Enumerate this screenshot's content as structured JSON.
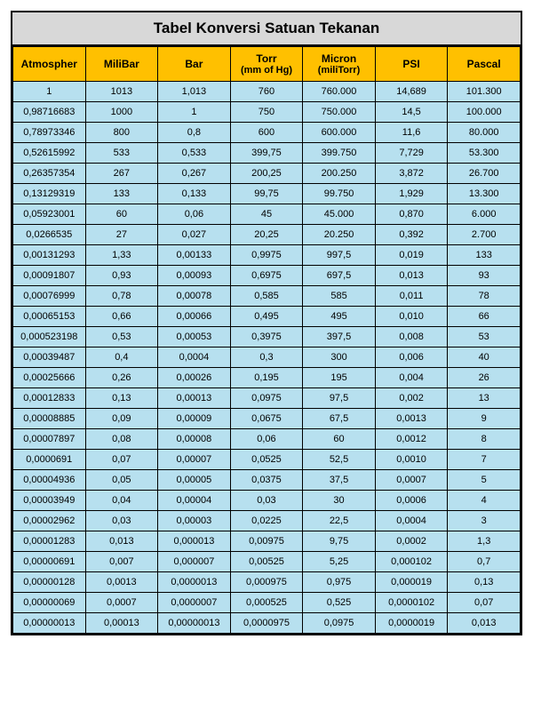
{
  "title": "Tabel Konversi Satuan Tekanan",
  "table": {
    "columns": [
      {
        "label": "Atmospher",
        "sub": ""
      },
      {
        "label": "MiliBar",
        "sub": ""
      },
      {
        "label": "Bar",
        "sub": ""
      },
      {
        "label": "Torr",
        "sub": "(mm of Hg)"
      },
      {
        "label": "Micron",
        "sub": "(miliTorr)"
      },
      {
        "label": "PSI",
        "sub": ""
      },
      {
        "label": "Pascal",
        "sub": ""
      }
    ],
    "colors": {
      "title_bg": "#d8d8d8",
      "header_bg": "#ffc000",
      "cell_bg": "#b7e0ef",
      "border": "#000000",
      "text": "#000000"
    },
    "title_fontsize": 17,
    "header_fontsize": 12,
    "cell_fontsize": 11,
    "rows": [
      [
        "1",
        "1013",
        "1,013",
        "760",
        "760.000",
        "14,689",
        "101.300"
      ],
      [
        "0,98716683",
        "1000",
        "1",
        "750",
        "750.000",
        "14,5",
        "100.000"
      ],
      [
        "0,78973346",
        "800",
        "0,8",
        "600",
        "600.000",
        "11,6",
        "80.000"
      ],
      [
        "0,52615992",
        "533",
        "0,533",
        "399,75",
        "399.750",
        "7,729",
        "53.300"
      ],
      [
        "0,26357354",
        "267",
        "0,267",
        "200,25",
        "200.250",
        "3,872",
        "26.700"
      ],
      [
        "0,13129319",
        "133",
        "0,133",
        "99,75",
        "99.750",
        "1,929",
        "13.300"
      ],
      [
        "0,05923001",
        "60",
        "0,06",
        "45",
        "45.000",
        "0,870",
        "6.000"
      ],
      [
        "0,0266535",
        "27",
        "0,027",
        "20,25",
        "20.250",
        "0,392",
        "2.700"
      ],
      [
        "0,00131293",
        "1,33",
        "0,00133",
        "0,9975",
        "997,5",
        "0,019",
        "133"
      ],
      [
        "0,00091807",
        "0,93",
        "0,00093",
        "0,6975",
        "697,5",
        "0,013",
        "93"
      ],
      [
        "0,00076999",
        "0,78",
        "0,00078",
        "0,585",
        "585",
        "0,011",
        "78"
      ],
      [
        "0,00065153",
        "0,66",
        "0,00066",
        "0,495",
        "495",
        "0,010",
        "66"
      ],
      [
        "0,000523198",
        "0,53",
        "0,00053",
        "0,3975",
        "397,5",
        "0,008",
        "53"
      ],
      [
        "0,00039487",
        "0,4",
        "0,0004",
        "0,3",
        "300",
        "0,006",
        "40"
      ],
      [
        "0,00025666",
        "0,26",
        "0,00026",
        "0,195",
        "195",
        "0,004",
        "26"
      ],
      [
        "0,00012833",
        "0,13",
        "0,00013",
        "0,0975",
        "97,5",
        "0,002",
        "13"
      ],
      [
        "0,00008885",
        "0,09",
        "0,00009",
        "0,0675",
        "67,5",
        "0,0013",
        "9"
      ],
      [
        "0,00007897",
        "0,08",
        "0,00008",
        "0,06",
        "60",
        "0,0012",
        "8"
      ],
      [
        "0,0000691",
        "0,07",
        "0,00007",
        "0,0525",
        "52,5",
        "0,0010",
        "7"
      ],
      [
        "0,00004936",
        "0,05",
        "0,00005",
        "0,0375",
        "37,5",
        "0,0007",
        "5"
      ],
      [
        "0,00003949",
        "0,04",
        "0,00004",
        "0,03",
        "30",
        "0,0006",
        "4"
      ],
      [
        "0,00002962",
        "0,03",
        "0,00003",
        "0,0225",
        "22,5",
        "0,0004",
        "3"
      ],
      [
        "0,00001283",
        "0,013",
        "0,000013",
        "0,00975",
        "9,75",
        "0,0002",
        "1,3"
      ],
      [
        "0,00000691",
        "0,007",
        "0,000007",
        "0,00525",
        "5,25",
        "0,000102",
        "0,7"
      ],
      [
        "0,00000128",
        "0,0013",
        "0,0000013",
        "0,000975",
        "0,975",
        "0,000019",
        "0,13"
      ],
      [
        "0,00000069",
        "0,0007",
        "0,0000007",
        "0,000525",
        "0,525",
        "0,0000102",
        "0,07"
      ],
      [
        "0,00000013",
        "0,00013",
        "0,00000013",
        "0,0000975",
        "0,0975",
        "0,0000019",
        "0,013"
      ]
    ]
  }
}
